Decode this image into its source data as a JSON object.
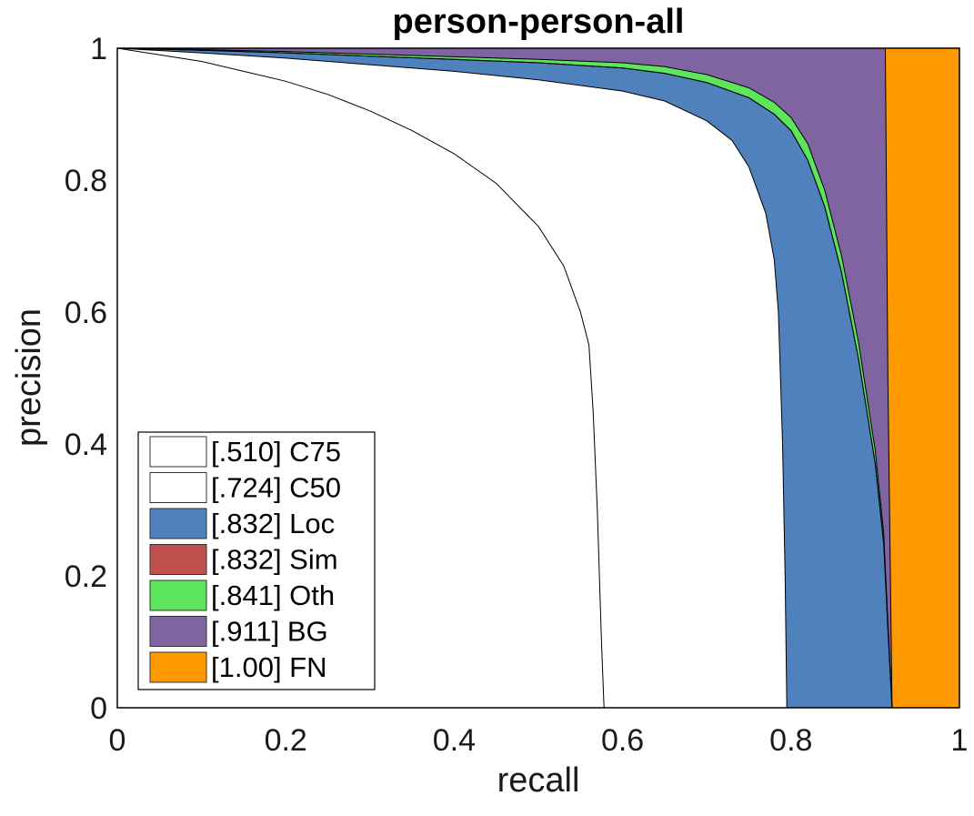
{
  "chart_data": {
    "type": "area",
    "title": "person-person-all",
    "xlabel": "recall",
    "ylabel": "precision",
    "xlim": [
      0,
      1
    ],
    "ylim": [
      0,
      1
    ],
    "xticks": [
      "0",
      "0.2",
      "0.4",
      "0.6",
      "0.8",
      "1"
    ],
    "yticks": [
      "0",
      "0.2",
      "0.4",
      "0.6",
      "0.8",
      "1"
    ],
    "legend_position": "bottom-left",
    "series": [
      {
        "key": "c75",
        "name": "C75",
        "ap": ".510",
        "legend": "[.510] C75",
        "color": "#ffffff",
        "x": [
          0.0,
          0.05,
          0.1,
          0.15,
          0.2,
          0.25,
          0.3,
          0.35,
          0.4,
          0.45,
          0.5,
          0.53,
          0.55,
          0.56,
          0.565,
          0.57,
          0.575,
          0.578
        ],
        "y": [
          1.0,
          0.99,
          0.98,
          0.965,
          0.95,
          0.93,
          0.905,
          0.875,
          0.84,
          0.795,
          0.73,
          0.67,
          0.6,
          0.55,
          0.45,
          0.3,
          0.1,
          0.0
        ]
      },
      {
        "key": "c50",
        "name": "C50",
        "ap": ".724",
        "legend": "[.724] C50",
        "color": "#ffffff",
        "x": [
          0.0,
          0.1,
          0.2,
          0.3,
          0.4,
          0.5,
          0.6,
          0.65,
          0.7,
          0.73,
          0.75,
          0.77,
          0.78,
          0.785,
          0.79,
          0.793,
          0.795
        ],
        "y": [
          1.0,
          0.993,
          0.985,
          0.975,
          0.965,
          0.952,
          0.935,
          0.92,
          0.89,
          0.86,
          0.82,
          0.75,
          0.68,
          0.6,
          0.4,
          0.2,
          0.0
        ]
      },
      {
        "key": "loc",
        "name": "Loc",
        "ap": ".832",
        "legend": "[.832] Loc",
        "color": "#4f81bd",
        "x": [
          0.0,
          0.1,
          0.2,
          0.3,
          0.4,
          0.5,
          0.6,
          0.65,
          0.7,
          0.75,
          0.78,
          0.8,
          0.82,
          0.84,
          0.86,
          0.88,
          0.9,
          0.91,
          0.915,
          0.92
        ],
        "y": [
          1.0,
          0.997,
          0.993,
          0.988,
          0.983,
          0.978,
          0.97,
          0.962,
          0.948,
          0.925,
          0.9,
          0.875,
          0.83,
          0.76,
          0.66,
          0.53,
          0.37,
          0.25,
          0.12,
          0.0
        ]
      },
      {
        "key": "sim",
        "name": "Sim",
        "ap": ".832",
        "legend": "[.832] Sim",
        "color": "#c0504d",
        "x": [
          0.0,
          0.1,
          0.2,
          0.3,
          0.4,
          0.5,
          0.6,
          0.65,
          0.7,
          0.75,
          0.78,
          0.8,
          0.82,
          0.84,
          0.86,
          0.88,
          0.9,
          0.91,
          0.915,
          0.92
        ],
        "y": [
          1.0,
          0.997,
          0.993,
          0.988,
          0.983,
          0.978,
          0.97,
          0.962,
          0.948,
          0.925,
          0.9,
          0.875,
          0.83,
          0.76,
          0.66,
          0.53,
          0.37,
          0.25,
          0.12,
          0.0
        ]
      },
      {
        "key": "oth",
        "name": "Oth",
        "ap": ".841",
        "legend": "[.841] Oth",
        "color": "#5de65d",
        "x": [
          0.0,
          0.1,
          0.2,
          0.3,
          0.4,
          0.5,
          0.6,
          0.65,
          0.7,
          0.75,
          0.78,
          0.8,
          0.82,
          0.84,
          0.86,
          0.88,
          0.9,
          0.91,
          0.915,
          0.92
        ],
        "y": [
          1.0,
          0.998,
          0.995,
          0.991,
          0.987,
          0.983,
          0.978,
          0.972,
          0.96,
          0.94,
          0.918,
          0.895,
          0.855,
          0.785,
          0.685,
          0.555,
          0.39,
          0.265,
          0.13,
          0.0
        ]
      },
      {
        "key": "bg",
        "name": "BG",
        "ap": ".911",
        "legend": "[.911] BG",
        "color": "#8064a2",
        "x": [
          0.0,
          0.5,
          0.9,
          0.912,
          0.915,
          0.92
        ],
        "y": [
          1.0,
          1.0,
          1.0,
          1.0,
          0.5,
          0.0
        ]
      },
      {
        "key": "fn",
        "name": "FN",
        "ap": "[1.00]",
        "legend": "[1.00] FN",
        "color": "#ff9900",
        "x": [
          0.0,
          1.0
        ],
        "y": [
          1.0,
          1.0
        ]
      }
    ]
  }
}
